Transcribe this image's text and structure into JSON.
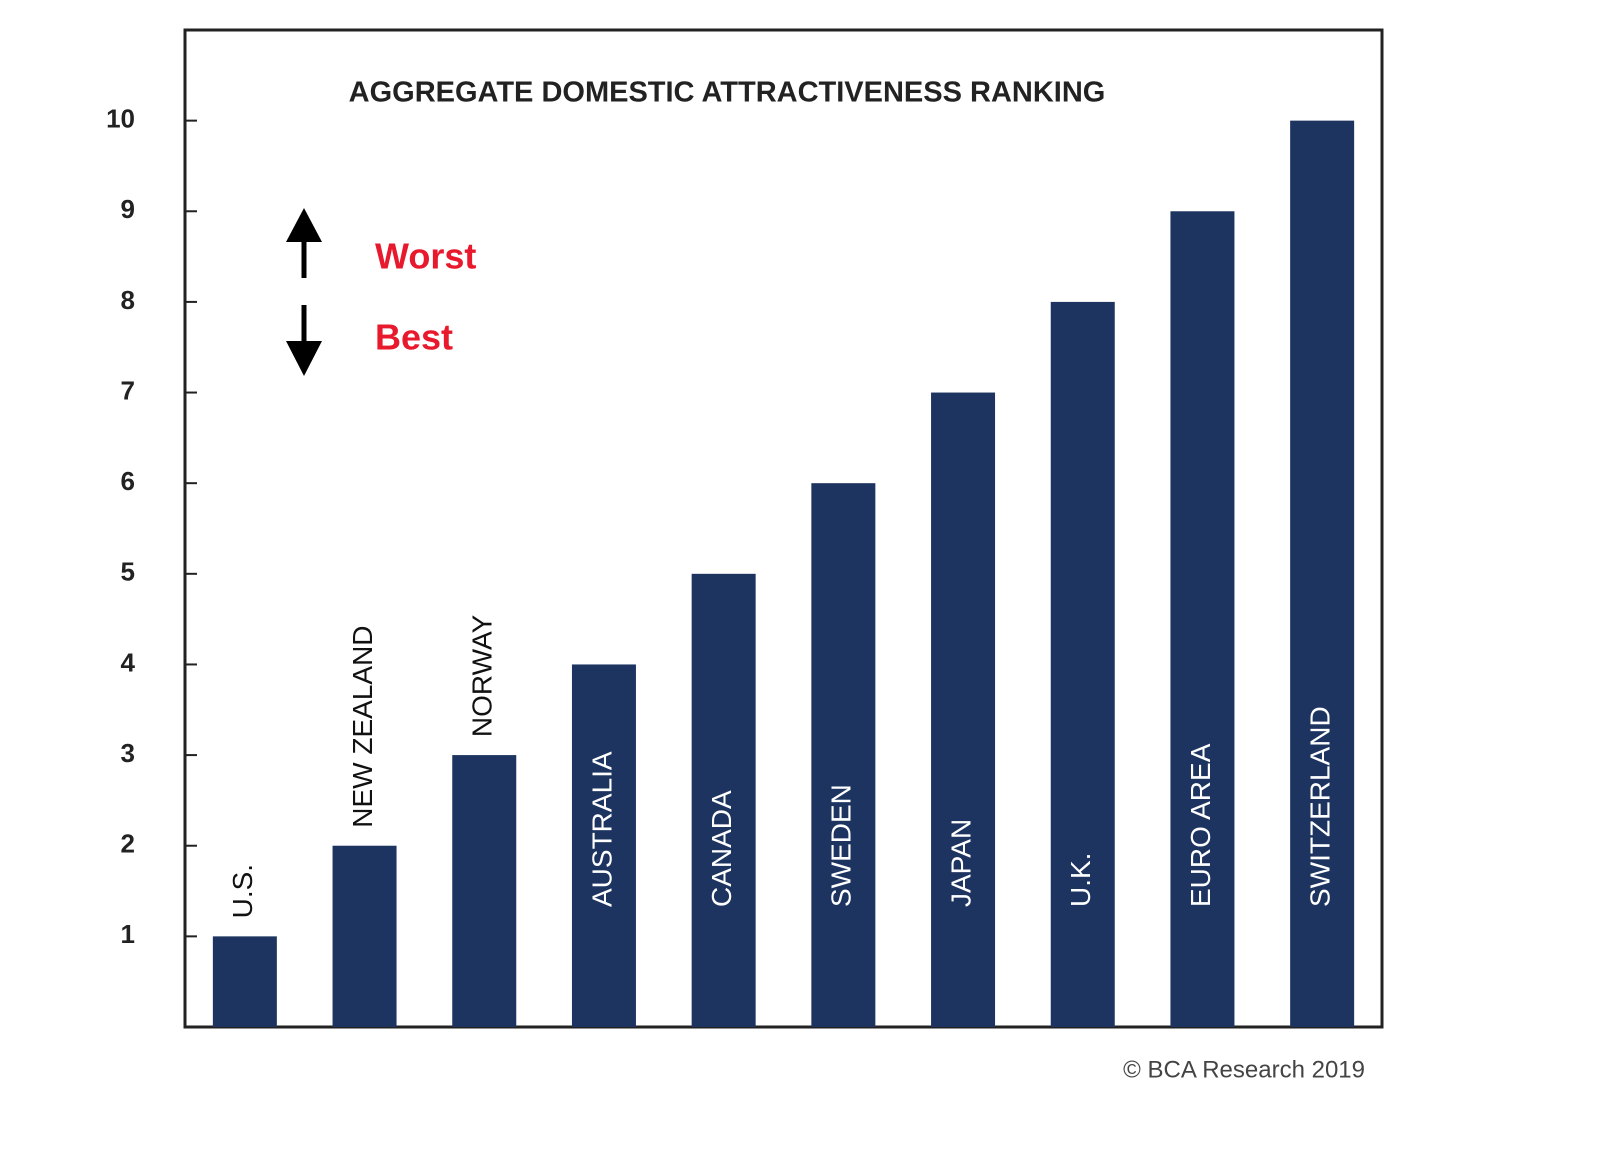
{
  "chart_data": {
    "type": "bar",
    "title": "AGGREGATE DOMESTIC ATTRACTIVENESS RANKING",
    "categories": [
      "U.S.",
      "NEW ZEALAND",
      "NORWAY",
      "AUSTRALIA",
      "CANADA",
      "SWEDEN",
      "JAPAN",
      "U.K.",
      "EURO AREA",
      "SWITZERLAND"
    ],
    "values": [
      1,
      2,
      3,
      4,
      5,
      6,
      7,
      8,
      9,
      10
    ],
    "color": "#1d3461",
    "ylim": [
      0,
      11
    ],
    "yticks": [
      1,
      2,
      3,
      4,
      5,
      6,
      7,
      8,
      9,
      10
    ],
    "annotations": [
      "Worst",
      "Best"
    ],
    "source": "© BCA Research 2019"
  }
}
